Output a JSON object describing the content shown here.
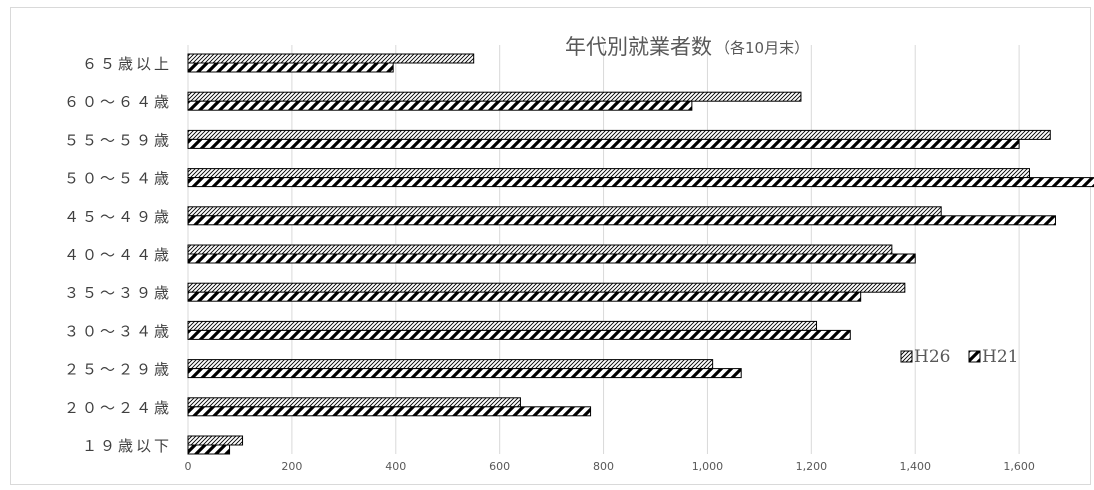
{
  "chart_data": {
    "type": "bar",
    "orientation": "horizontal",
    "title": "年代別就業者数",
    "subtitle": "（各10月末）",
    "categories": [
      "６５歳以上",
      "６０～６４歳",
      "５５～５９歳",
      "５０～５４歳",
      "４５～４９歳",
      "４０～４４歳",
      "３５～３９歳",
      "３０～３４歳",
      "２５～２９歳",
      "２０～２４歳",
      "１９歳以下"
    ],
    "series": [
      {
        "name": "H26",
        "values": [
          550,
          1180,
          1660,
          1620,
          1450,
          1355,
          1380,
          1210,
          1010,
          640,
          105
        ]
      },
      {
        "name": "H21",
        "values": [
          395,
          970,
          1600,
          1775,
          1670,
          1400,
          1295,
          1275,
          1065,
          775,
          80
        ]
      }
    ],
    "xlim": [
      0,
      1800
    ],
    "xticks": [
      "0",
      "200",
      "400",
      "600",
      "800",
      "1,000",
      "1,200",
      "1,400",
      "1,600",
      "1,800"
    ],
    "grid": true,
    "legend_position": "right"
  }
}
